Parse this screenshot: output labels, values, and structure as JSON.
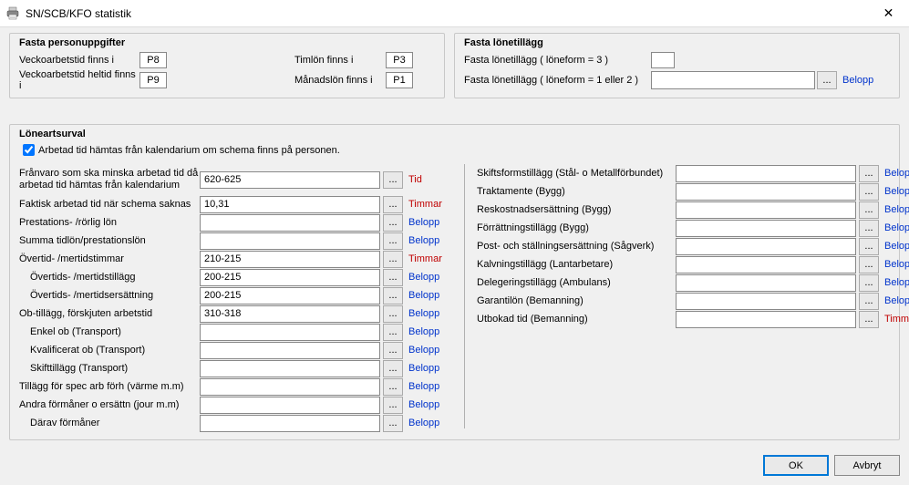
{
  "window": {
    "title": "SN/SCB/KFO statistik",
    "close_icon": "✕"
  },
  "fasta_personuppgifter": {
    "title": "Fasta personuppgifter",
    "rows": [
      {
        "l1": "Veckoarbetstid finns i",
        "v1": "P8",
        "l2": "Timlön finns i",
        "v2": "P3"
      },
      {
        "l1": "Veckoarbetstid heltid finns i",
        "v1": "P9",
        "l2": "Månadslön finns i",
        "v2": "P1"
      }
    ]
  },
  "fasta_lonetillagg": {
    "title": "Fasta lönetillägg",
    "row1_label": "Fasta lönetillägg  ( löneform = 3 )",
    "row2_label": "Fasta lönetillägg  ( löneform = 1 eller 2 )",
    "row2_value": "",
    "link_label": "Belopp"
  },
  "loneartsurval": {
    "title": "Löneartsurval",
    "checkbox_label": "Arbetad tid hämtas från kalendarium om schema finns på personen.",
    "checkbox_checked": true,
    "left": [
      {
        "label": "Frånvaro som ska minska arbetad tid då arbetad tid hämtas från kalendarium",
        "value": "620-625",
        "link": "Tid",
        "link_color": "red",
        "tall": true
      },
      {
        "label": "Faktisk arbetad tid när schema saknas",
        "value": "10,31",
        "link": "Timmar",
        "link_color": "red"
      },
      {
        "label": "Prestations- /rörlig lön",
        "value": "",
        "link": "Belopp",
        "link_color": "blue"
      },
      {
        "label": "Summa tidlön/prestationslön",
        "value": "",
        "link": "Belopp",
        "link_color": "blue"
      },
      {
        "label": "Övertid- /mertidstimmar",
        "value": "210-215",
        "link": "Timmar",
        "link_color": "red"
      },
      {
        "label": "Övertids- /mertidstillägg",
        "value": "200-215",
        "link": "Belopp",
        "link_color": "blue",
        "indent": true
      },
      {
        "label": "Övertids- /mertidsersättning",
        "value": "200-215",
        "link": "Belopp",
        "link_color": "blue",
        "indent": true
      },
      {
        "label": "Ob-tillägg, förskjuten arbetstid",
        "value": "310-318",
        "link": "Belopp",
        "link_color": "blue"
      },
      {
        "label": "Enkel ob (Transport)",
        "value": "",
        "link": "Belopp",
        "link_color": "blue",
        "indent": true
      },
      {
        "label": "Kvalificerat ob (Transport)",
        "value": "",
        "link": "Belopp",
        "link_color": "blue",
        "indent": true
      },
      {
        "label": "Skifttillägg (Transport)",
        "value": "",
        "link": "Belopp",
        "link_color": "blue",
        "indent": true
      },
      {
        "label": "Tillägg för spec arb förh (värme m.m)",
        "value": "",
        "link": "Belopp",
        "link_color": "blue"
      },
      {
        "label": "Andra förmåner o ersättn (jour m.m)",
        "value": "",
        "link": "Belopp",
        "link_color": "blue"
      },
      {
        "label": "Därav förmåner",
        "value": "",
        "link": "Belopp",
        "link_color": "blue",
        "indent": true
      }
    ],
    "right": [
      {
        "label": "Skiftsformstillägg (Stål- o Metallförbundet)",
        "value": "",
        "link": "Belopp",
        "link_color": "blue"
      },
      {
        "label": "Traktamente (Bygg)",
        "value": "",
        "link": "Belopp",
        "link_color": "blue"
      },
      {
        "label": "Reskostnadsersättning (Bygg)",
        "value": "",
        "link": "Belopp",
        "link_color": "blue"
      },
      {
        "label": "Förrättningstillägg (Bygg)",
        "value": "",
        "link": "Belopp",
        "link_color": "blue"
      },
      {
        "label": "Post- och ställningsersättning (Sågverk)",
        "value": "",
        "link": "Belopp",
        "link_color": "blue"
      },
      {
        "label": "Kalvningstillägg (Lantarbetare)",
        "value": "",
        "link": "Belopp",
        "link_color": "blue"
      },
      {
        "label": "Delegeringstillägg (Ambulans)",
        "value": "",
        "link": "Belopp",
        "link_color": "blue"
      },
      {
        "label": "Garantilön (Bemanning)",
        "value": "",
        "link": "Belopp",
        "link_color": "blue"
      },
      {
        "label": "Utbokad tid (Bemanning)",
        "value": "",
        "link": "Timmar",
        "link_color": "red"
      }
    ]
  },
  "footer": {
    "ok": "OK",
    "cancel": "Avbryt"
  },
  "colors": {
    "background": "#f0f0f0",
    "border": "#c8c8c8",
    "input_border": "#888888",
    "button_bg": "#e9e9e9",
    "link_red": "#c00000",
    "link_blue": "#0033cc",
    "primary": "#0078d7"
  }
}
